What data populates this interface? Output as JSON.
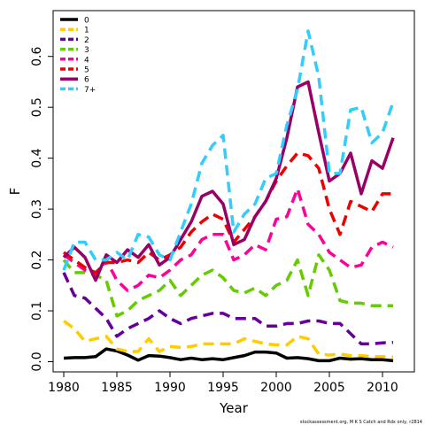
{
  "chart_data": {
    "type": "line",
    "xlabel": "Year",
    "ylabel": "F",
    "xlim": [
      1979,
      2013
    ],
    "ylim": [
      -0.02,
      0.69
    ],
    "xticks": [
      1980,
      1985,
      1990,
      1995,
      2000,
      2005,
      2010
    ],
    "yticks": [
      0.0,
      0.1,
      0.2,
      0.3,
      0.4,
      0.5,
      0.6
    ],
    "ytick_labels": [
      "0.0",
      "0.1",
      "0.2",
      "0.3",
      "0.4",
      "0.5",
      "0.6"
    ],
    "grid": false,
    "legend_position": "top-left",
    "x": [
      1980,
      1981,
      1982,
      1983,
      1984,
      1985,
      1986,
      1987,
      1988,
      1989,
      1990,
      1991,
      1992,
      1993,
      1994,
      1995,
      1996,
      1997,
      1998,
      1999,
      2000,
      2001,
      2002,
      2003,
      2004,
      2005,
      2006,
      2007,
      2008,
      2009,
      2010,
      2011
    ],
    "series": [
      {
        "name": "0",
        "color": "#000000",
        "dash": "solid",
        "values": [
          0.007,
          0.008,
          0.008,
          0.01,
          0.025,
          0.021,
          0.013,
          0.003,
          0.012,
          0.011,
          0.008,
          0.004,
          0.007,
          0.004,
          0.006,
          0.004,
          0.008,
          0.012,
          0.019,
          0.019,
          0.017,
          0.007,
          0.008,
          0.006,
          0.002,
          0.002,
          0.007,
          0.005,
          0.006,
          0.004,
          0.004,
          0.002
        ]
      },
      {
        "name": "1",
        "color": "#FFCC00",
        "dash": "dashed",
        "values": [
          0.08,
          0.065,
          0.04,
          0.045,
          0.05,
          0.025,
          0.02,
          0.02,
          0.045,
          0.02,
          0.03,
          0.028,
          0.03,
          0.035,
          0.035,
          0.035,
          0.035,
          0.045,
          0.04,
          0.035,
          0.033,
          0.033,
          0.05,
          0.045,
          0.015,
          0.013,
          0.015,
          0.012,
          0.012,
          0.01,
          0.01,
          0.009
        ]
      },
      {
        "name": "2",
        "color": "#660099",
        "dash": "dashed",
        "values": [
          0.175,
          0.13,
          0.125,
          0.105,
          0.085,
          0.05,
          0.065,
          0.075,
          0.085,
          0.1,
          0.085,
          0.075,
          0.085,
          0.09,
          0.095,
          0.095,
          0.085,
          0.085,
          0.085,
          0.07,
          0.07,
          0.075,
          0.075,
          0.08,
          0.08,
          0.075,
          0.075,
          0.055,
          0.035,
          0.035,
          0.037,
          0.038
        ]
      },
      {
        "name": "3",
        "color": "#66CC00",
        "dash": "dashed",
        "values": [
          0.2,
          0.175,
          0.175,
          0.17,
          0.16,
          0.09,
          0.1,
          0.12,
          0.13,
          0.14,
          0.16,
          0.13,
          0.15,
          0.17,
          0.18,
          0.165,
          0.14,
          0.135,
          0.145,
          0.13,
          0.15,
          0.16,
          0.2,
          0.13,
          0.21,
          0.18,
          0.12,
          0.115,
          0.115,
          0.11,
          0.11,
          0.11
        ]
      },
      {
        "name": "4",
        "color": "#FF0099",
        "dash": "dashed",
        "values": [
          0.21,
          0.195,
          0.18,
          0.17,
          0.2,
          0.16,
          0.14,
          0.15,
          0.17,
          0.165,
          0.18,
          0.2,
          0.21,
          0.24,
          0.25,
          0.25,
          0.2,
          0.21,
          0.23,
          0.22,
          0.28,
          0.285,
          0.34,
          0.27,
          0.25,
          0.215,
          0.2,
          0.185,
          0.19,
          0.225,
          0.235,
          0.225
        ]
      },
      {
        "name": "5",
        "color": "#EE0000",
        "dash": "dashed",
        "values": [
          0.215,
          0.2,
          0.185,
          0.175,
          0.195,
          0.195,
          0.2,
          0.195,
          0.215,
          0.2,
          0.21,
          0.225,
          0.255,
          0.275,
          0.29,
          0.28,
          0.235,
          0.26,
          0.285,
          0.315,
          0.355,
          0.385,
          0.41,
          0.405,
          0.38,
          0.3,
          0.25,
          0.315,
          0.305,
          0.295,
          0.33,
          0.33
        ]
      },
      {
        "name": "6",
        "color": "#990066",
        "dash": "solid",
        "values": [
          0.205,
          0.225,
          0.205,
          0.16,
          0.21,
          0.195,
          0.22,
          0.205,
          0.23,
          0.19,
          0.205,
          0.24,
          0.275,
          0.325,
          0.335,
          0.31,
          0.23,
          0.24,
          0.285,
          0.315,
          0.36,
          0.44,
          0.54,
          0.55,
          0.45,
          0.355,
          0.37,
          0.41,
          0.33,
          0.395,
          0.38,
          0.44
        ]
      },
      {
        "name": "7+",
        "color": "#33CCFF",
        "dash": "dashed",
        "values": [
          0.18,
          0.235,
          0.235,
          0.2,
          0.2,
          0.215,
          0.2,
          0.25,
          0.245,
          0.21,
          0.2,
          0.255,
          0.31,
          0.39,
          0.425,
          0.445,
          0.255,
          0.29,
          0.31,
          0.36,
          0.37,
          0.465,
          0.535,
          0.65,
          0.56,
          0.37,
          0.37,
          0.495,
          0.5,
          0.43,
          0.45,
          0.51
        ]
      }
    ]
  },
  "footer": "stockassessment.org, M K S Catch and Rdx only, r2814"
}
